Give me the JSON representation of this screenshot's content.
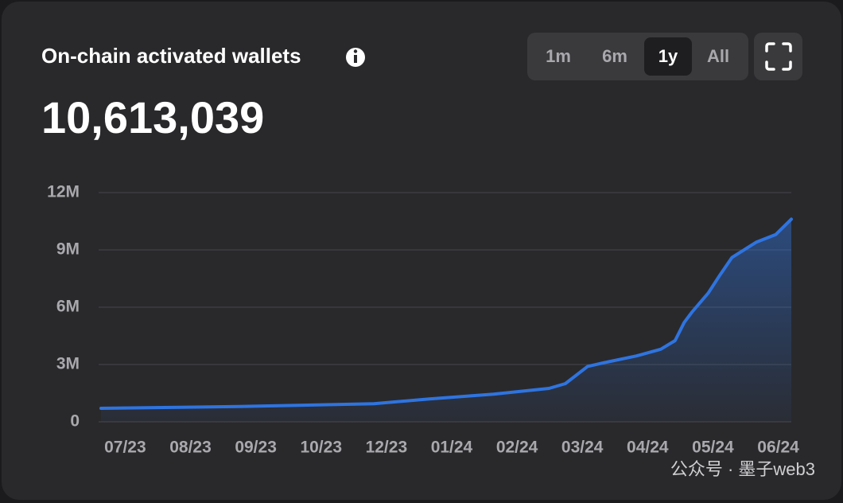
{
  "ui": {
    "ranges": [
      "1m",
      "6m",
      "1y",
      "All"
    ],
    "selected_range": 2,
    "watermark": "公众号 · 墨子web3"
  },
  "chart_data": {
    "type": "area",
    "title": "On-chain activated wallets",
    "headline": "10,613,039",
    "series": [
      {
        "color": "#2f74e0",
        "x": [
          -0.37,
          1.74,
          3.81,
          4.66,
          5.64,
          6.49,
          6.74,
          7.08,
          7.34,
          7.83,
          8.2,
          8.42,
          8.56,
          8.68,
          8.93,
          9.11,
          9.29,
          9.66,
          9.96,
          10.2
        ],
        "values": [
          0.71,
          0.8,
          0.95,
          1.2,
          1.45,
          1.75,
          2.0,
          2.9,
          3.1,
          3.45,
          3.8,
          4.25,
          5.2,
          5.75,
          6.75,
          7.7,
          8.6,
          9.4,
          9.8,
          10.61
        ]
      }
    ],
    "xlim": [
      -0.37,
      10.2
    ],
    "xticks": [
      {
        "value": 0,
        "label": "07/23"
      },
      {
        "value": 1,
        "label": "08/23"
      },
      {
        "value": 2,
        "label": "09/23"
      },
      {
        "value": 3,
        "label": "10/23"
      },
      {
        "value": 4,
        "label": "12/23"
      },
      {
        "value": 5,
        "label": "01/24"
      },
      {
        "value": 6,
        "label": "02/24"
      },
      {
        "value": 7,
        "label": "03/24"
      },
      {
        "value": 8,
        "label": "04/24"
      },
      {
        "value": 9,
        "label": "05/24"
      },
      {
        "value": 10,
        "label": "06/24"
      }
    ],
    "ylim": [
      0,
      12
    ],
    "yticks": [
      0,
      {
        "value": 3,
        "label": "3M"
      },
      {
        "value": 6,
        "label": "6M"
      },
      {
        "value": 9,
        "label": "9M"
      },
      {
        "value": 12,
        "label": "12M"
      }
    ],
    "grid": true
  }
}
